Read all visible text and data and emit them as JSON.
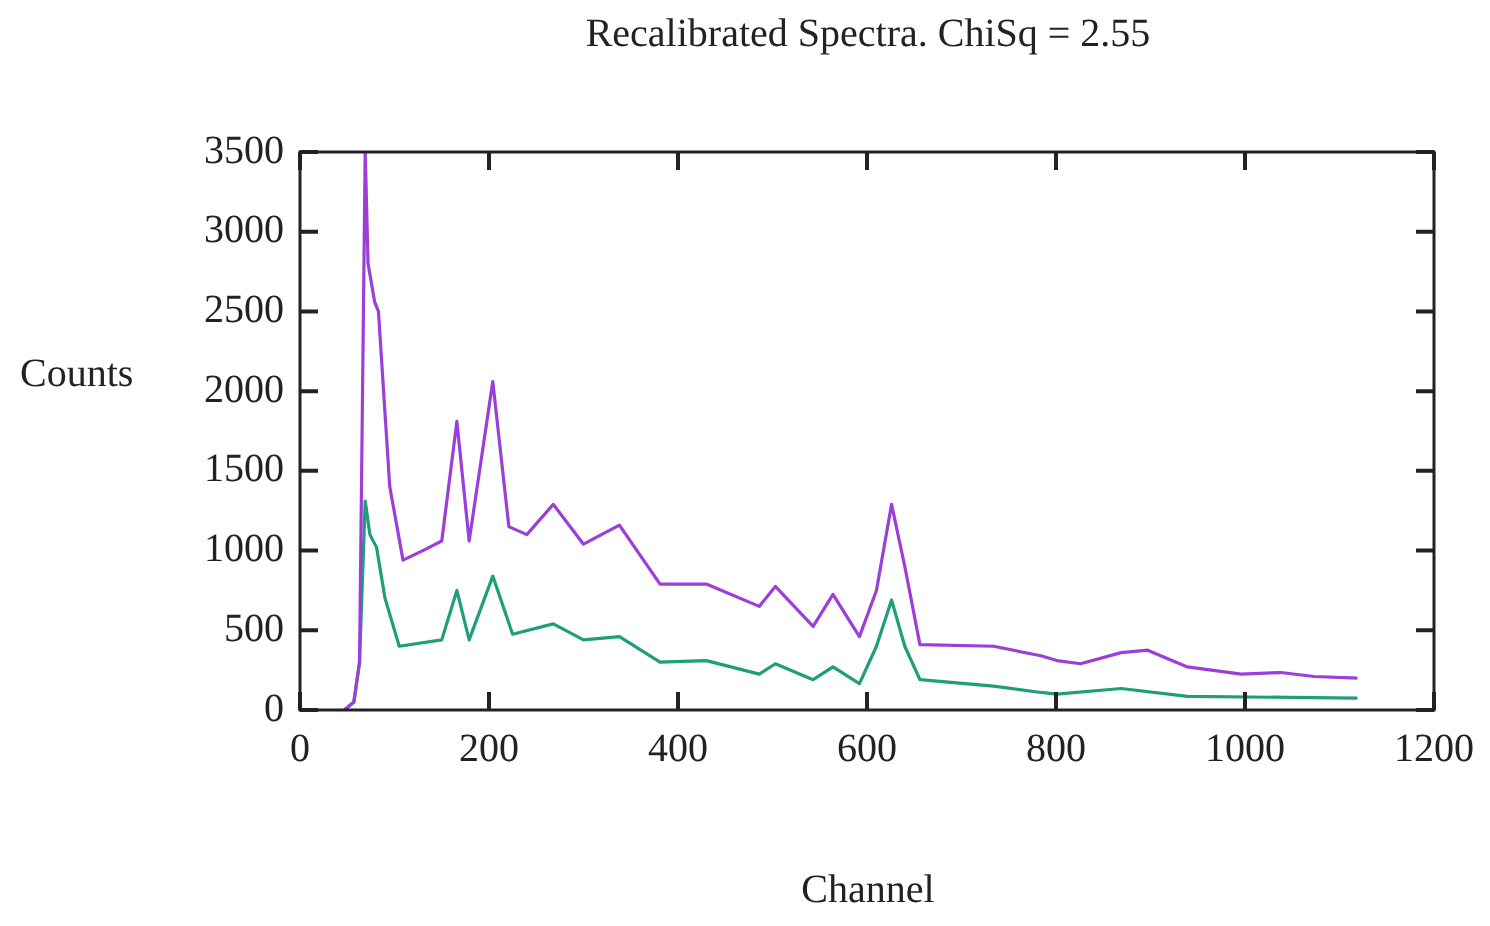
{
  "chart_data": {
    "type": "line",
    "title": "Recalibrated Spectra. ChiSq = 2.55",
    "xlabel": "Channel",
    "ylabel": "Counts",
    "xlim": [
      0,
      1200
    ],
    "xticks": [
      0,
      200,
      400,
      600,
      800,
      1000,
      1200
    ],
    "ylim": [
      0,
      3500
    ],
    "yticks": [
      0,
      500,
      1000,
      1500,
      2000,
      2500,
      3000,
      3500
    ],
    "grid": false,
    "legend": false,
    "marker": "none",
    "line_style": "solid",
    "series": [
      {
        "color": "#9b3fd8",
        "x": [
          47,
          57,
          63,
          69,
          72,
          79,
          83,
          95,
          109,
          130,
          150,
          166,
          179,
          204,
          221,
          240,
          268,
          300,
          338,
          381,
          430,
          486,
          503,
          543,
          564,
          592,
          610,
          626,
          640,
          656,
          734,
          784,
          801,
          826,
          869,
          897,
          939,
          996,
          1038,
          1073,
          1119
        ],
        "values": [
          0,
          50,
          300,
          3500,
          2800,
          2560,
          2500,
          1400,
          940,
          1000,
          1060,
          1810,
          1060,
          2060,
          1150,
          1100,
          1290,
          1040,
          1160,
          790,
          790,
          650,
          775,
          525,
          725,
          460,
          750,
          1290,
          900,
          410,
          400,
          340,
          310,
          290,
          360,
          375,
          270,
          225,
          235,
          210,
          200
        ]
      },
      {
        "color": "#1f9e7a",
        "x": [
          47,
          57,
          63,
          69,
          74,
          81,
          90,
          105,
          150,
          166,
          179,
          204,
          225,
          268,
          300,
          338,
          381,
          430,
          486,
          503,
          543,
          564,
          592,
          610,
          626,
          640,
          656,
          734,
          784,
          801,
          869,
          939,
          1119
        ],
        "values": [
          0,
          50,
          300,
          1310,
          1100,
          1020,
          700,
          400,
          440,
          750,
          440,
          840,
          475,
          540,
          440,
          460,
          300,
          310,
          225,
          290,
          190,
          270,
          165,
          400,
          690,
          400,
          190,
          150,
          110,
          100,
          135,
          85,
          75
        ]
      }
    ]
  }
}
